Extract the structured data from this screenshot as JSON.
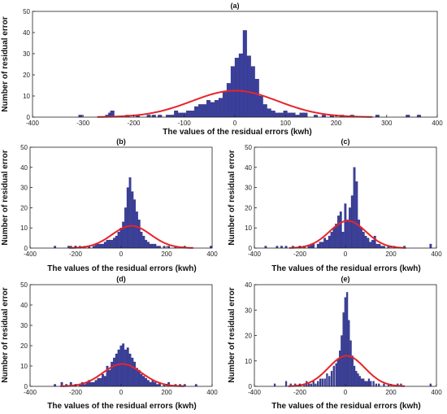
{
  "chart_data": [
    {
      "type": "bar",
      "title": "(a)",
      "xlabel": "The values of the residual errors (kwh)",
      "ylabel": "Number of residual error",
      "xlim": [
        -400,
        400
      ],
      "ylim": [
        0,
        50
      ],
      "xticks": [
        -400,
        -300,
        -200,
        -100,
        0,
        100,
        200,
        300,
        400
      ],
      "yticks": [
        0,
        10,
        20,
        30,
        40,
        50
      ],
      "bin_width": 8,
      "bars": [
        [
          -305,
          1
        ],
        [
          -252,
          1
        ],
        [
          -246,
          2
        ],
        [
          -242,
          3
        ],
        [
          -212,
          1
        ],
        [
          -192,
          1
        ],
        [
          -170,
          1
        ],
        [
          -160,
          1
        ],
        [
          -148,
          1
        ],
        [
          -132,
          1
        ],
        [
          -124,
          1
        ],
        [
          -116,
          3
        ],
        [
          -108,
          2
        ],
        [
          -100,
          2
        ],
        [
          -92,
          3
        ],
        [
          -84,
          3
        ],
        [
          -76,
          5
        ],
        [
          -68,
          6
        ],
        [
          -60,
          6
        ],
        [
          -52,
          8
        ],
        [
          -44,
          7
        ],
        [
          -36,
          8
        ],
        [
          -28,
          9
        ],
        [
          -20,
          12
        ],
        [
          -12,
          16
        ],
        [
          -4,
          24
        ],
        [
          4,
          28
        ],
        [
          12,
          30
        ],
        [
          20,
          41
        ],
        [
          28,
          29
        ],
        [
          36,
          24
        ],
        [
          44,
          18
        ],
        [
          52,
          10
        ],
        [
          60,
          6
        ],
        [
          68,
          4
        ],
        [
          76,
          3
        ],
        [
          84,
          2
        ],
        [
          92,
          2
        ],
        [
          100,
          3
        ],
        [
          108,
          2
        ],
        [
          116,
          2
        ],
        [
          124,
          1
        ],
        [
          132,
          2
        ],
        [
          140,
          2
        ],
        [
          160,
          1
        ],
        [
          176,
          1
        ],
        [
          192,
          1
        ],
        [
          212,
          1
        ],
        [
          232,
          1
        ],
        [
          282,
          1
        ],
        [
          342,
          1
        ],
        [
          364,
          1
        ]
      ],
      "fit_curve": {
        "color": "#e8242a",
        "mean": 0,
        "sigma": 85,
        "peak": 12.5
      },
      "bar_color": "#3a3f9e"
    },
    {
      "type": "bar",
      "title": "(b)",
      "xlabel": "The values of the residual errors (kwh)",
      "ylabel": "Number of residual error",
      "xlim": [
        -400,
        400
      ],
      "ylim": [
        0,
        50
      ],
      "xticks": [
        -400,
        -200,
        0,
        200,
        400
      ],
      "yticks": [
        0,
        10,
        20,
        30,
        40,
        50
      ],
      "bin_width": 10,
      "bars": [
        [
          -290,
          1
        ],
        [
          -230,
          1
        ],
        [
          -220,
          1
        ],
        [
          -200,
          1
        ],
        [
          -180,
          1
        ],
        [
          -160,
          1
        ],
        [
          -140,
          1
        ],
        [
          -120,
          1
        ],
        [
          -110,
          2
        ],
        [
          -100,
          2
        ],
        [
          -90,
          2
        ],
        [
          -80,
          2
        ],
        [
          -70,
          3
        ],
        [
          -60,
          4
        ],
        [
          -50,
          4
        ],
        [
          -40,
          4
        ],
        [
          -30,
          5
        ],
        [
          -20,
          6
        ],
        [
          -10,
          8
        ],
        [
          0,
          10
        ],
        [
          10,
          13
        ],
        [
          20,
          20
        ],
        [
          30,
          30
        ],
        [
          40,
          35
        ],
        [
          50,
          28
        ],
        [
          60,
          24
        ],
        [
          70,
          18
        ],
        [
          80,
          14
        ],
        [
          90,
          8
        ],
        [
          100,
          6
        ],
        [
          110,
          4
        ],
        [
          120,
          3
        ],
        [
          130,
          2
        ],
        [
          140,
          2
        ],
        [
          150,
          2
        ],
        [
          160,
          1
        ],
        [
          170,
          1
        ],
        [
          190,
          1
        ],
        [
          210,
          1
        ],
        [
          240,
          1
        ],
        [
          280,
          1
        ],
        [
          395,
          1
        ]
      ],
      "fit_curve": {
        "color": "#e8242a",
        "mean": 45,
        "sigma": 85,
        "peak": 11
      },
      "bar_color": "#3a3f9e"
    },
    {
      "type": "bar",
      "title": "(c)",
      "xlabel": "The values of the residual errors (kwh)",
      "ylabel": "Number of residual error",
      "xlim": [
        -400,
        400
      ],
      "ylim": [
        0,
        50
      ],
      "xticks": [
        -400,
        -200,
        0,
        200,
        400
      ],
      "yticks": [
        0,
        10,
        20,
        30,
        40,
        50
      ],
      "bin_width": 10,
      "bars": [
        [
          -350,
          1
        ],
        [
          -300,
          1
        ],
        [
          -280,
          1
        ],
        [
          -260,
          1
        ],
        [
          -230,
          1
        ],
        [
          -200,
          1
        ],
        [
          -180,
          1
        ],
        [
          -160,
          1
        ],
        [
          -150,
          2
        ],
        [
          -140,
          2
        ],
        [
          -120,
          2
        ],
        [
          -110,
          3
        ],
        [
          -100,
          3
        ],
        [
          -90,
          5
        ],
        [
          -80,
          4
        ],
        [
          -70,
          6
        ],
        [
          -60,
          8
        ],
        [
          -50,
          10
        ],
        [
          -40,
          12
        ],
        [
          -30,
          16
        ],
        [
          -20,
          18
        ],
        [
          -10,
          8
        ],
        [
          0,
          22
        ],
        [
          10,
          14
        ],
        [
          20,
          20
        ],
        [
          30,
          26
        ],
        [
          40,
          40
        ],
        [
          50,
          33
        ],
        [
          60,
          14
        ],
        [
          70,
          10
        ],
        [
          80,
          8
        ],
        [
          90,
          6
        ],
        [
          100,
          5
        ],
        [
          110,
          3
        ],
        [
          120,
          4
        ],
        [
          130,
          6
        ],
        [
          140,
          2
        ],
        [
          150,
          2
        ],
        [
          160,
          1
        ],
        [
          170,
          1
        ],
        [
          190,
          1
        ],
        [
          215,
          1
        ],
        [
          260,
          1
        ],
        [
          375,
          2
        ]
      ],
      "fit_curve": {
        "color": "#e8242a",
        "mean": 10,
        "sigma": 80,
        "peak": 13.5
      },
      "bar_color": "#3a3f9e"
    },
    {
      "type": "bar",
      "title": "(d)",
      "xlabel": "The values of the residual errors (kwh)",
      "ylabel": "Number of residual error",
      "xlim": [
        -400,
        400
      ],
      "ylim": [
        0,
        50
      ],
      "xticks": [
        -400,
        -200,
        0,
        200,
        400
      ],
      "yticks": [
        0,
        10,
        20,
        30,
        40,
        50
      ],
      "bin_width": 10,
      "bars": [
        [
          -290,
          1
        ],
        [
          -260,
          2
        ],
        [
          -240,
          1
        ],
        [
          -220,
          2
        ],
        [
          -200,
          1
        ],
        [
          -180,
          1
        ],
        [
          -170,
          2
        ],
        [
          -160,
          1
        ],
        [
          -150,
          2
        ],
        [
          -140,
          3
        ],
        [
          -130,
          2
        ],
        [
          -120,
          2
        ],
        [
          -110,
          3
        ],
        [
          -100,
          4
        ],
        [
          -90,
          4
        ],
        [
          -80,
          6
        ],
        [
          -70,
          5
        ],
        [
          -60,
          10
        ],
        [
          -50,
          8
        ],
        [
          -40,
          12
        ],
        [
          -30,
          14
        ],
        [
          -20,
          16
        ],
        [
          -10,
          18
        ],
        [
          0,
          20
        ],
        [
          10,
          21
        ],
        [
          20,
          18
        ],
        [
          30,
          19
        ],
        [
          40,
          16
        ],
        [
          50,
          14
        ],
        [
          60,
          12
        ],
        [
          70,
          9
        ],
        [
          80,
          8
        ],
        [
          90,
          6
        ],
        [
          100,
          5
        ],
        [
          110,
          4
        ],
        [
          120,
          3
        ],
        [
          130,
          2
        ],
        [
          140,
          3
        ],
        [
          150,
          2
        ],
        [
          160,
          1
        ],
        [
          170,
          2
        ],
        [
          190,
          1
        ],
        [
          210,
          2
        ],
        [
          240,
          1
        ],
        [
          260,
          1
        ],
        [
          280,
          1
        ],
        [
          330,
          1
        ]
      ],
      "fit_curve": {
        "color": "#e8242a",
        "mean": 5,
        "sigma": 85,
        "peak": 11
      },
      "bar_color": "#3a3f9e"
    },
    {
      "type": "bar",
      "title": "(e)",
      "xlabel": "The values of the residual errors (kwh)",
      "ylabel": "Number of residual error",
      "xlim": [
        -400,
        400
      ],
      "ylim": [
        0,
        40
      ],
      "xticks": [
        -400,
        -200,
        0,
        200,
        400
      ],
      "yticks": [
        0,
        10,
        20,
        30,
        40
      ],
      "bin_width": 8,
      "bars": [
        [
          -310,
          1
        ],
        [
          -260,
          2
        ],
        [
          -240,
          1
        ],
        [
          -220,
          1
        ],
        [
          -200,
          1
        ],
        [
          -180,
          1
        ],
        [
          -170,
          2
        ],
        [
          -160,
          1
        ],
        [
          -150,
          1
        ],
        [
          -140,
          2
        ],
        [
          -130,
          1
        ],
        [
          -120,
          2
        ],
        [
          -110,
          3
        ],
        [
          -100,
          3
        ],
        [
          -90,
          3
        ],
        [
          -80,
          5
        ],
        [
          -70,
          4
        ],
        [
          -60,
          6
        ],
        [
          -50,
          8
        ],
        [
          -40,
          9
        ],
        [
          -32,
          11
        ],
        [
          -24,
          14
        ],
        [
          -16,
          20
        ],
        [
          -8,
          29
        ],
        [
          0,
          35
        ],
        [
          8,
          37
        ],
        [
          16,
          26
        ],
        [
          24,
          18
        ],
        [
          32,
          12
        ],
        [
          40,
          8
        ],
        [
          48,
          6
        ],
        [
          56,
          5
        ],
        [
          64,
          4
        ],
        [
          72,
          3
        ],
        [
          80,
          3
        ],
        [
          88,
          2
        ],
        [
          96,
          2
        ],
        [
          104,
          3
        ],
        [
          112,
          2
        ],
        [
          124,
          2
        ],
        [
          136,
          1
        ],
        [
          148,
          1
        ],
        [
          170,
          1
        ],
        [
          190,
          1
        ],
        [
          230,
          1
        ],
        [
          245,
          1
        ],
        [
          375,
          1
        ]
      ],
      "fit_curve": {
        "color": "#e8242a",
        "mean": 5,
        "sigma": 80,
        "peak": 12
      },
      "bar_color": "#3a3f9e"
    }
  ]
}
